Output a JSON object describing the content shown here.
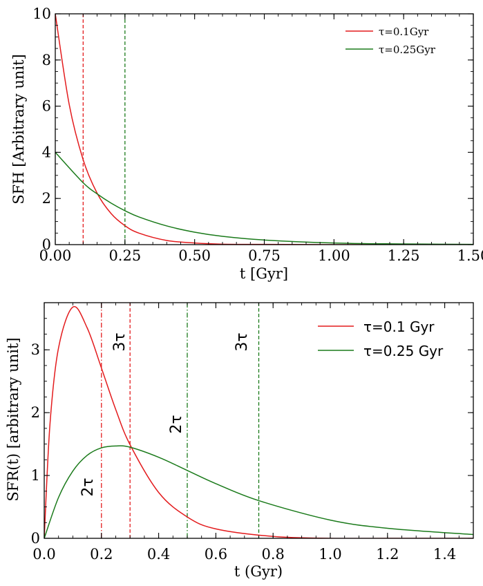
{
  "chart_data": [
    {
      "type": "line",
      "xlabel": "t [Gyr]",
      "ylabel": "SFH [Arbitrary unit]",
      "xlim": [
        0,
        1.5
      ],
      "ylim": [
        0,
        10
      ],
      "x_ticks": [
        "0.00",
        "0.25",
        "0.50",
        "0.75",
        "1.00",
        "1.25",
        "1.50"
      ],
      "y_ticks": [
        "0",
        "2",
        "4",
        "6",
        "8",
        "10"
      ],
      "grid": false,
      "legend_position": "top-right",
      "series": [
        {
          "name": "τ=0.1Gyr",
          "color": "#e31a1c",
          "x": [
            0,
            0.05,
            0.1,
            0.15,
            0.2,
            0.25,
            0.3,
            0.4,
            0.5,
            0.6,
            0.75,
            1.0,
            1.25,
            1.5
          ],
          "y": [
            10,
            6.07,
            3.68,
            2.23,
            1.35,
            0.82,
            0.5,
            0.18,
            0.07,
            0.02,
            0.01,
            0,
            0,
            0
          ]
        },
        {
          "name": "τ=0.25Gyr",
          "color": "#1a7a1a",
          "x": [
            0,
            0.1,
            0.15,
            0.2,
            0.25,
            0.3,
            0.4,
            0.5,
            0.6,
            0.75,
            1.0,
            1.25,
            1.5
          ],
          "y": [
            4,
            2.68,
            2.2,
            1.8,
            1.47,
            1.2,
            0.81,
            0.54,
            0.36,
            0.2,
            0.07,
            0.03,
            0.01
          ]
        }
      ],
      "vlines": [
        {
          "x": 0.1,
          "color": "#e31a1c",
          "style": "dashed"
        },
        {
          "x": 0.25,
          "color": "#1a7a1a",
          "style": "dashed"
        }
      ]
    },
    {
      "type": "line",
      "xlabel": "t (Gyr)",
      "ylabel": "SFR(t) [arbitrary unit]",
      "xlim": [
        0,
        1.5
      ],
      "ylim": [
        0,
        3.75
      ],
      "x_ticks": [
        "0.0",
        "0.2",
        "0.4",
        "0.6",
        "0.8",
        "1.0",
        "1.2",
        "1.4"
      ],
      "y_ticks": [
        "0",
        "1",
        "2",
        "3"
      ],
      "grid": false,
      "legend_position": "top-right",
      "series": [
        {
          "name": "τ=0.1 Gyr",
          "color": "#e31a1c",
          "x": [
            0,
            0.02,
            0.05,
            0.1,
            0.15,
            0.2,
            0.25,
            0.3,
            0.4,
            0.5,
            0.6,
            0.8,
            1.0,
            1.2,
            1.5
          ],
          "y": [
            0,
            1.81,
            3.03,
            3.68,
            3.35,
            2.71,
            2.05,
            1.49,
            0.73,
            0.34,
            0.15,
            0.03,
            0.0,
            0,
            0
          ]
        },
        {
          "name": "τ=0.25 Gyr",
          "color": "#1a7a1a",
          "x": [
            0,
            0.05,
            0.1,
            0.15,
            0.2,
            0.25,
            0.3,
            0.4,
            0.5,
            0.6,
            0.75,
            1.0,
            1.2,
            1.5
          ],
          "y": [
            0,
            0.65,
            1.07,
            1.32,
            1.44,
            1.47,
            1.45,
            1.29,
            1.08,
            0.87,
            0.6,
            0.29,
            0.16,
            0.06
          ]
        }
      ],
      "vlines": [
        {
          "x": 0.2,
          "color": "#e31a1c",
          "style": "dashdot"
        },
        {
          "x": 0.3,
          "color": "#e31a1c",
          "style": "dashed"
        },
        {
          "x": 0.5,
          "color": "#1a7a1a",
          "style": "dashdot"
        },
        {
          "x": 0.75,
          "color": "#1a7a1a",
          "style": "dashed"
        }
      ],
      "annotations": [
        {
          "text": "2τ",
          "color": "#e31a1c"
        },
        {
          "text": "3τ",
          "color": "#e31a1c"
        },
        {
          "text": "2τ",
          "color": "#1a7a1a"
        },
        {
          "text": "3τ",
          "color": "#1a7a1a"
        }
      ]
    }
  ]
}
